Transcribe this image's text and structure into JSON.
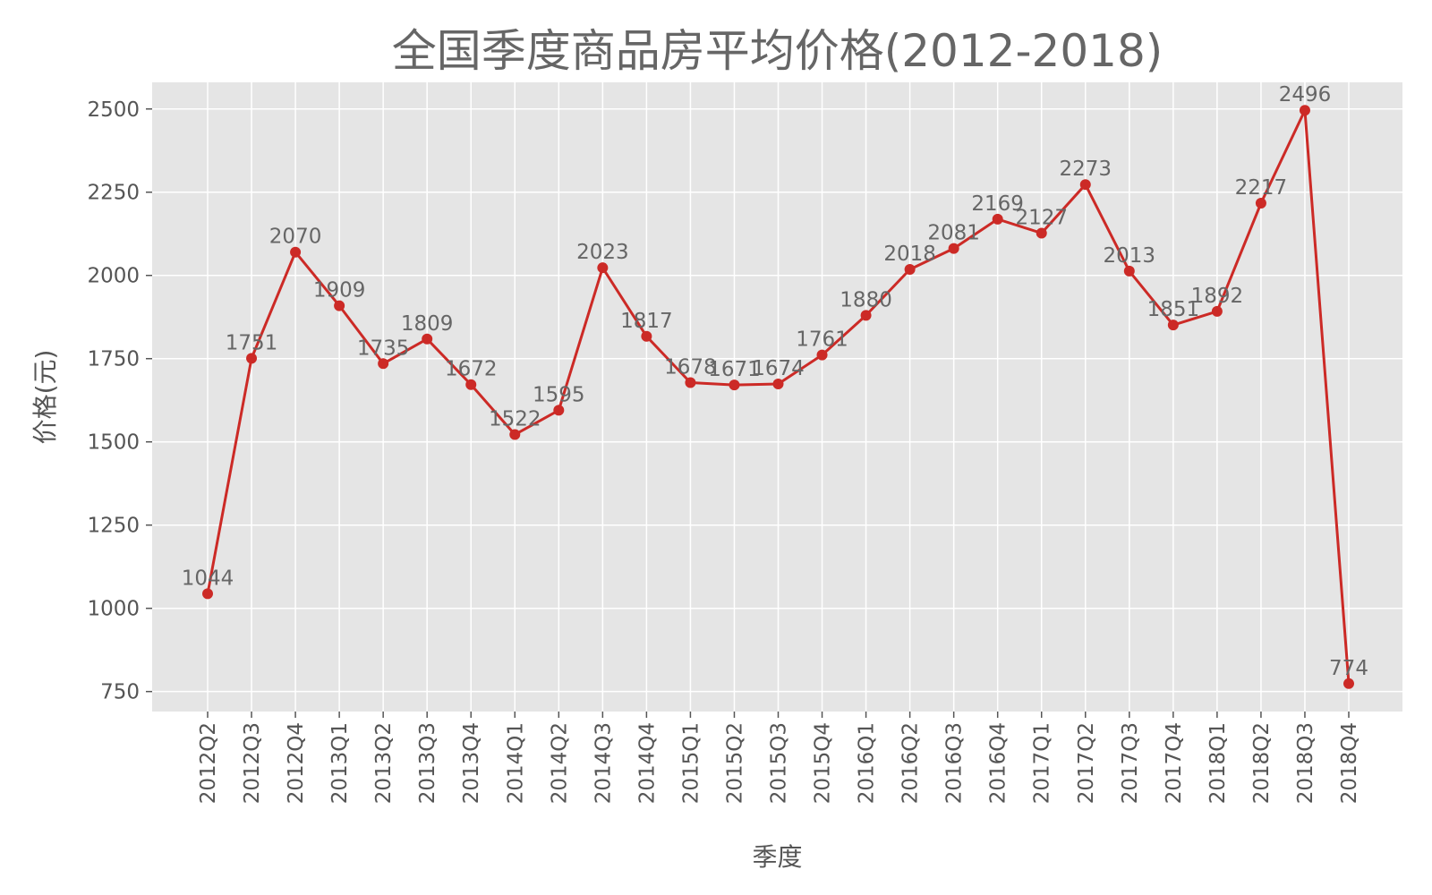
{
  "chart_data": {
    "type": "line",
    "title": "全国季度商品房平均价格(2012-2018)",
    "xlabel": "季度",
    "ylabel": "价格(元)",
    "categories": [
      "2012Q2",
      "2012Q3",
      "2012Q4",
      "2013Q1",
      "2013Q2",
      "2013Q3",
      "2013Q4",
      "2014Q1",
      "2014Q2",
      "2014Q3",
      "2014Q4",
      "2015Q1",
      "2015Q2",
      "2015Q3",
      "2015Q4",
      "2016Q1",
      "2016Q2",
      "2016Q3",
      "2016Q4",
      "2017Q1",
      "2017Q2",
      "2017Q3",
      "2017Q4",
      "2018Q1",
      "2018Q2",
      "2018Q3",
      "2018Q4"
    ],
    "series": [
      {
        "values": [
          1044,
          1751,
          2070,
          1909,
          1735,
          1809,
          1672,
          1522,
          1595,
          2023,
          1817,
          1678,
          1671,
          1674,
          1761,
          1880,
          2018,
          2081,
          2169,
          2127,
          2273,
          2013,
          1851,
          1892,
          2217,
          2496,
          774
        ]
      }
    ],
    "ylim": [
      690,
      2580
    ],
    "yticks": [
      750,
      1000,
      1250,
      1500,
      1750,
      2000,
      2250,
      2500
    ],
    "grid": true,
    "data_labels": true,
    "colors": {
      "line": "#cc2a26",
      "plot_background": "#e5e5e5",
      "grid": "#ffffff",
      "text": "#555555"
    }
  }
}
